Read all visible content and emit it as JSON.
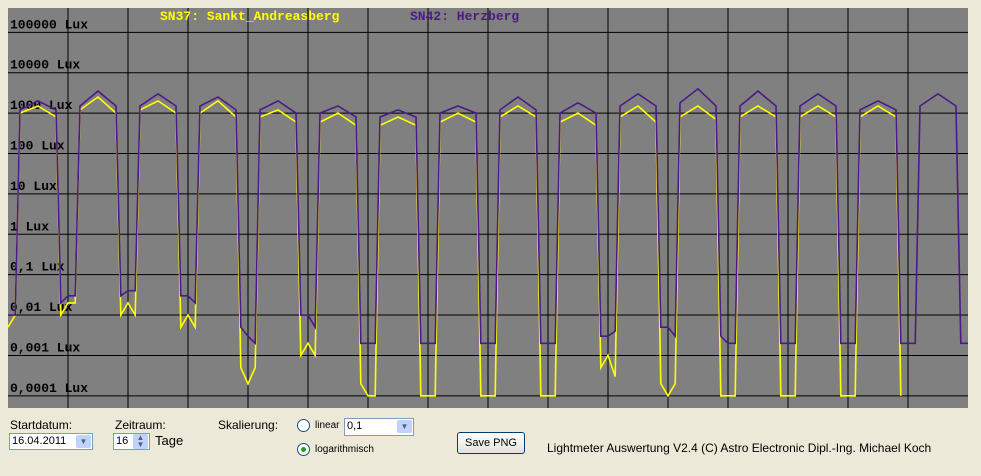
{
  "chart_data": {
    "type": "line",
    "log_scale_y": true,
    "grid": true,
    "background": "#808080",
    "x": [
      0,
      0.12,
      0.2,
      0.5,
      0.8,
      0.88,
      1,
      1.12,
      1.2,
      1.5,
      1.8,
      1.88,
      2,
      2.12,
      2.2,
      2.5,
      2.8,
      2.88,
      3,
      3.12,
      3.2,
      3.5,
      3.8,
      3.88,
      4,
      4.12,
      4.2,
      4.5,
      4.8,
      4.88,
      5,
      5.12,
      5.2,
      5.5,
      5.8,
      5.88,
      6,
      6.12,
      6.2,
      6.5,
      6.8,
      6.88,
      7,
      7.12,
      7.2,
      7.5,
      7.8,
      7.88,
      8,
      8.12,
      8.2,
      8.5,
      8.8,
      8.88,
      9,
      9.12,
      9.2,
      9.5,
      9.8,
      9.88,
      10,
      10.12,
      10.2,
      10.5,
      10.8,
      10.88,
      11,
      11.12,
      11.2,
      11.5,
      11.8,
      11.88,
      12,
      12.12,
      12.2,
      12.5,
      12.8,
      12.88,
      13,
      13.12,
      13.2,
      13.5,
      13.8,
      13.88,
      14,
      14.12,
      14.2,
      14.5,
      14.8,
      14.88,
      15,
      15.12,
      15.2,
      15.5,
      15.8,
      15.88,
      16
    ],
    "xlim": [
      0,
      16
    ],
    "xticks": [
      1,
      2,
      3,
      4,
      5,
      6,
      7,
      8,
      9,
      10,
      11,
      12,
      13,
      14,
      15
    ],
    "ylim": [
      5e-05,
      400000
    ],
    "yticks": [
      {
        "value": 100000,
        "label": "100000 Lux"
      },
      {
        "value": 10000,
        "label": "10000 Lux"
      },
      {
        "value": 1000,
        "label": "1000 Lux"
      },
      {
        "value": 100,
        "label": "100 Lux"
      },
      {
        "value": 10,
        "label": "10 Lux"
      },
      {
        "value": 1,
        "label": "1 Lux"
      },
      {
        "value": 0.1,
        "label": "0,1 Lux"
      },
      {
        "value": 0.01,
        "label": "0,01 Lux"
      },
      {
        "value": 0.001,
        "label": "0,001 Lux"
      },
      {
        "value": 0.0001,
        "label": "0,0001 Lux"
      }
    ],
    "series": [
      {
        "name": "SN37: Sankt_Andreasberg",
        "color": "#ffff00",
        "values": [
          0.005,
          0.01,
          1000,
          1500,
          800,
          0.01,
          0.02,
          0.02,
          1200,
          2500,
          1000,
          0.01,
          0.02,
          0.01,
          1200,
          2000,
          1000,
          0.005,
          0.01,
          0.005,
          1000,
          2000,
          800,
          0.0005,
          0.0002,
          0.0005,
          800,
          1200,
          600,
          0.001,
          0.002,
          0.001,
          600,
          1000,
          500,
          0.0002,
          0.0001,
          0.0001,
          500,
          800,
          500,
          0.0001,
          0.0001,
          0.0001,
          600,
          1000,
          600,
          0.0001,
          0.0001,
          0.0001,
          800,
          1500,
          800,
          0.0001,
          0.0001,
          0.0001,
          600,
          1000,
          500,
          0.0005,
          0.001,
          0.0003,
          800,
          1500,
          600,
          0.0002,
          0.0001,
          0.0002,
          800,
          1500,
          700,
          0.0001,
          0.0001,
          0.0001,
          800,
          1500,
          800,
          0.0001,
          0.0001,
          0.0001,
          800,
          1500,
          800,
          0.0001,
          0.0001,
          0.0001,
          800,
          1500,
          800,
          0.0001,
          null,
          null,
          null,
          null,
          null,
          null,
          null
        ]
      },
      {
        "name": "SN42: Herzberg",
        "color": "#4b1a88",
        "values": [
          0.01,
          0.01,
          1200,
          2000,
          1200,
          0.02,
          0.03,
          0.03,
          1500,
          3500,
          1500,
          0.03,
          0.04,
          0.04,
          1500,
          3000,
          1500,
          0.03,
          0.03,
          0.02,
          1500,
          2500,
          1200,
          0.005,
          0.003,
          0.002,
          1200,
          2000,
          1000,
          0.01,
          0.01,
          0.005,
          1000,
          1500,
          800,
          0.002,
          0.002,
          0.002,
          800,
          1200,
          800,
          0.002,
          0.002,
          0.002,
          1000,
          1500,
          1000,
          0.002,
          0.002,
          0.002,
          1200,
          2500,
          1200,
          0.002,
          0.002,
          0.002,
          1000,
          1800,
          1000,
          0.003,
          0.003,
          0.004,
          1500,
          3000,
          1500,
          0.005,
          0.005,
          0.003,
          1800,
          4000,
          1500,
          0.003,
          0.002,
          0.002,
          1500,
          3500,
          1500,
          0.002,
          0.002,
          0.002,
          1500,
          3000,
          1500,
          0.002,
          0.002,
          0.002,
          1200,
          2000,
          1200,
          0.002,
          0.002,
          0.002,
          1500,
          3000,
          1500,
          0.002,
          0.002
        ]
      }
    ]
  },
  "controls": {
    "start_label": "Startdatum:",
    "start_date": "16.04.2011",
    "period_label": "Zeitraum:",
    "period_value": "16",
    "period_unit": "Tage",
    "scale_label": "Skalierung:",
    "linear_label": "linear",
    "linear_value": "0,1",
    "log_label": "logarithmisch",
    "save_button": "Save PNG",
    "footer": "Lightmeter Auswertung V2.4  (C) Astro Electronic Dipl.-Ing. Michael Koch"
  }
}
